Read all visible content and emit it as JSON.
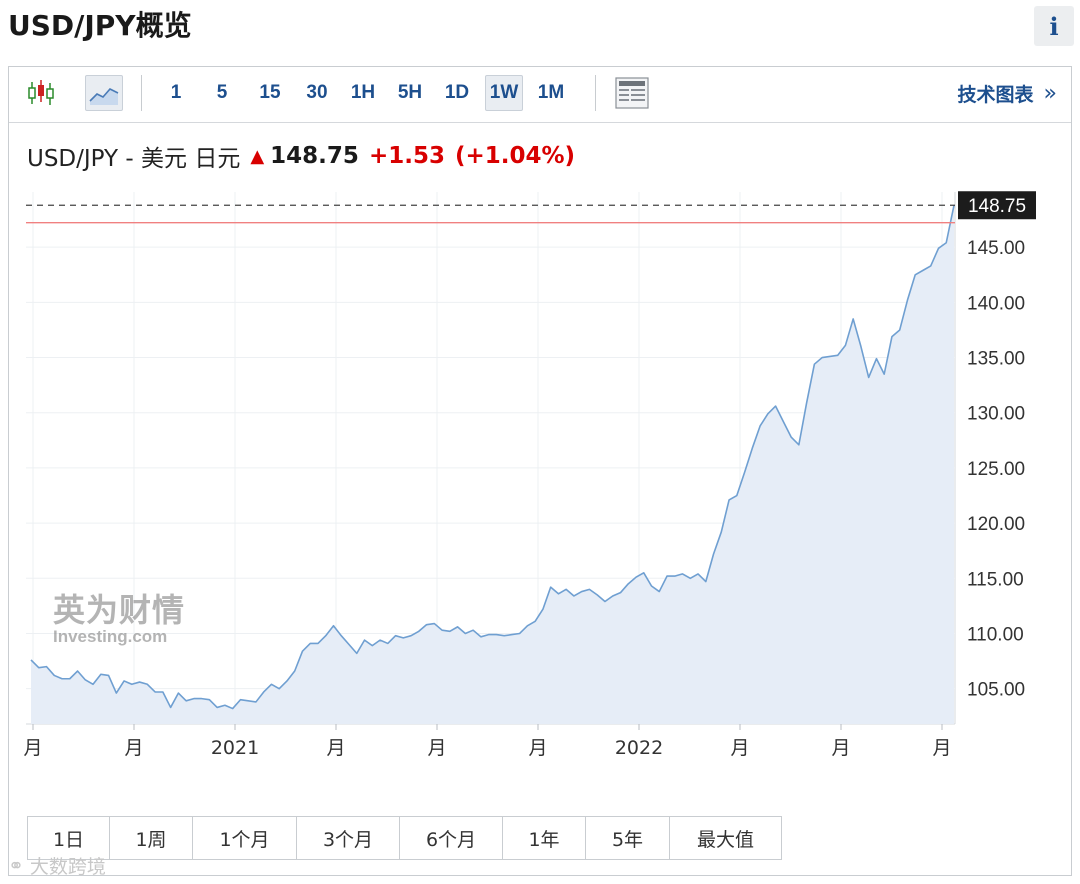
{
  "page": {
    "title": "USD/JPY概览",
    "info_label": "i"
  },
  "toolbar": {
    "chart_types": [
      "candlestick-chart-icon",
      "area-chart-icon"
    ],
    "timeframes": [
      "1",
      "5",
      "15",
      "30",
      "1H",
      "5H",
      "1D",
      "1W",
      "1M"
    ],
    "active_timeframe": "1W",
    "tech_chart_label": "技术图表",
    "tech_chart_arrow": "»"
  },
  "quote": {
    "name": "USD/JPY - 美元 日元",
    "price": "148.75",
    "change": "+1.53",
    "change_pct": "(+1.04%)",
    "direction": "up"
  },
  "chart_data": {
    "type": "area",
    "last_price_label": "148.75",
    "ref_line_value": 147.22,
    "ylim": [
      101.8,
      150.0
    ],
    "y_ticks": [
      105,
      110,
      115,
      120,
      125,
      130,
      135,
      140,
      145
    ],
    "y_tick_labels": [
      "105.00",
      "110.00",
      "115.00",
      "120.00",
      "125.00",
      "130.00",
      "135.00",
      "140.00",
      "145.00"
    ],
    "x_tick_labels": [
      "月",
      "月",
      "2021",
      "月",
      "月",
      "月",
      "2022",
      "月",
      "月",
      "月"
    ],
    "series": [
      {
        "values": [
          107.6,
          106.9,
          107.0,
          106.2,
          105.9,
          105.9,
          106.6,
          105.8,
          105.4,
          106.3,
          106.2,
          104.6,
          105.7,
          105.4,
          105.6,
          105.4,
          104.7,
          104.7,
          103.3,
          104.6,
          103.9,
          104.1,
          104.1,
          104.0,
          103.3,
          103.5,
          103.2,
          104.0,
          103.9,
          103.8,
          104.7,
          105.4,
          105.0,
          105.7,
          106.6,
          108.4,
          109.1,
          109.1,
          109.8,
          110.7,
          109.8,
          109.0,
          108.2,
          109.4,
          108.9,
          109.4,
          109.1,
          109.8,
          109.6,
          109.8,
          110.2,
          110.8,
          110.9,
          110.3,
          110.2,
          110.6,
          110.0,
          110.3,
          109.7,
          109.9,
          109.9,
          109.8,
          109.9,
          110.0,
          110.7,
          111.1,
          112.2,
          114.2,
          113.6,
          114.0,
          113.4,
          113.8,
          114.0,
          113.5,
          112.9,
          113.4,
          113.7,
          114.5,
          115.1,
          115.5,
          114.3,
          113.8,
          115.2,
          115.2,
          115.4,
          115.0,
          115.4,
          114.7,
          117.2,
          119.2,
          122.1,
          122.5,
          124.6,
          126.8,
          128.8,
          129.9,
          130.6,
          129.2,
          127.8,
          127.1,
          130.9,
          134.4,
          135.0,
          135.1,
          135.2,
          136.1,
          138.5,
          136.0,
          133.2,
          134.9,
          133.5,
          136.9,
          137.5,
          140.2,
          142.5,
          142.9,
          143.3,
          144.9,
          145.4,
          148.8
        ]
      }
    ]
  },
  "range_buttons": [
    "1日",
    "1周",
    "1个月",
    "3个月",
    "6个月",
    "1年",
    "5年",
    "最大值"
  ],
  "watermark": {
    "cn": "英为财情",
    "en": "Investing.com"
  },
  "footer_watermark": "大数跨境"
}
